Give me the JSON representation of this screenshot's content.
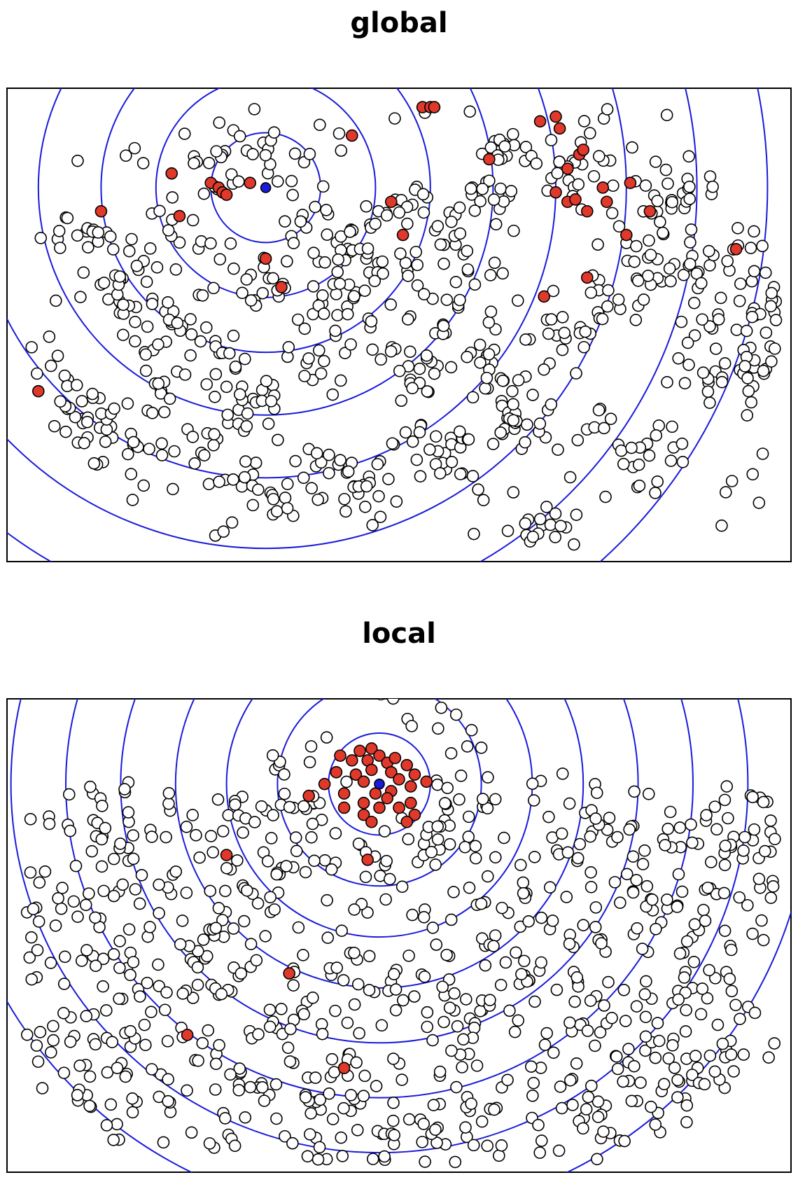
{
  "chart_data": [
    {
      "type": "scatter",
      "title": "global",
      "xlabel": "",
      "ylabel": "",
      "axes_visible": false,
      "grid": false,
      "ring_color": "#1a1adb",
      "query_color": "#1a1adb",
      "neighbor_color": "#e0392b",
      "point_color": "#ffffff",
      "query_point": {
        "x": 0.33,
        "y": 0.79
      },
      "ring_radii": [
        0.07,
        0.14,
        0.21,
        0.29,
        0.37,
        0.46,
        0.55,
        0.64
      ],
      "neighbors": [
        {
          "x": 0.53,
          "y": 0.96
        },
        {
          "x": 0.54,
          "y": 0.96
        },
        {
          "x": 0.545,
          "y": 0.96
        },
        {
          "x": 0.44,
          "y": 0.9
        },
        {
          "x": 0.21,
          "y": 0.82
        },
        {
          "x": 0.26,
          "y": 0.8
        },
        {
          "x": 0.27,
          "y": 0.79
        },
        {
          "x": 0.275,
          "y": 0.78
        },
        {
          "x": 0.28,
          "y": 0.775
        },
        {
          "x": 0.31,
          "y": 0.8
        },
        {
          "x": 0.22,
          "y": 0.73
        },
        {
          "x": 0.12,
          "y": 0.74
        },
        {
          "x": 0.33,
          "y": 0.64
        },
        {
          "x": 0.35,
          "y": 0.58
        },
        {
          "x": 0.49,
          "y": 0.76
        },
        {
          "x": 0.505,
          "y": 0.69
        },
        {
          "x": 0.615,
          "y": 0.85
        },
        {
          "x": 0.68,
          "y": 0.93
        },
        {
          "x": 0.7,
          "y": 0.94
        },
        {
          "x": 0.705,
          "y": 0.915
        },
        {
          "x": 0.73,
          "y": 0.86
        },
        {
          "x": 0.715,
          "y": 0.83
        },
        {
          "x": 0.735,
          "y": 0.87
        },
        {
          "x": 0.7,
          "y": 0.78
        },
        {
          "x": 0.715,
          "y": 0.76
        },
        {
          "x": 0.725,
          "y": 0.765
        },
        {
          "x": 0.74,
          "y": 0.74
        },
        {
          "x": 0.76,
          "y": 0.79
        },
        {
          "x": 0.765,
          "y": 0.76
        },
        {
          "x": 0.795,
          "y": 0.8
        },
        {
          "x": 0.82,
          "y": 0.74
        },
        {
          "x": 0.79,
          "y": 0.69
        },
        {
          "x": 0.685,
          "y": 0.56
        },
        {
          "x": 0.74,
          "y": 0.6
        },
        {
          "x": 0.93,
          "y": 0.66
        },
        {
          "x": 0.04,
          "y": 0.36
        }
      ]
    },
    {
      "type": "scatter",
      "title": "local",
      "xlabel": "",
      "ylabel": "",
      "axes_visible": false,
      "grid": false,
      "ring_color": "#1a1adb",
      "query_color": "#1a1adb",
      "neighbor_color": "#e0392b",
      "point_color": "#ffffff",
      "query_point": {
        "x": 0.475,
        "y": 0.82
      },
      "ring_radii": [
        0.065,
        0.13,
        0.195,
        0.26,
        0.33,
        0.4,
        0.47,
        0.55
      ],
      "neighbors": [
        {
          "x": 0.425,
          "y": 0.88
        },
        {
          "x": 0.44,
          "y": 0.87
        },
        {
          "x": 0.45,
          "y": 0.89
        },
        {
          "x": 0.46,
          "y": 0.87
        },
        {
          "x": 0.465,
          "y": 0.895
        },
        {
          "x": 0.475,
          "y": 0.88
        },
        {
          "x": 0.485,
          "y": 0.865
        },
        {
          "x": 0.495,
          "y": 0.875
        },
        {
          "x": 0.51,
          "y": 0.86
        },
        {
          "x": 0.52,
          "y": 0.84
        },
        {
          "x": 0.42,
          "y": 0.845
        },
        {
          "x": 0.405,
          "y": 0.82
        },
        {
          "x": 0.445,
          "y": 0.84
        },
        {
          "x": 0.455,
          "y": 0.825
        },
        {
          "x": 0.465,
          "y": 0.85
        },
        {
          "x": 0.49,
          "y": 0.845
        },
        {
          "x": 0.5,
          "y": 0.83
        },
        {
          "x": 0.515,
          "y": 0.815
        },
        {
          "x": 0.535,
          "y": 0.825
        },
        {
          "x": 0.49,
          "y": 0.805
        },
        {
          "x": 0.485,
          "y": 0.79
        },
        {
          "x": 0.47,
          "y": 0.8
        },
        {
          "x": 0.455,
          "y": 0.78
        },
        {
          "x": 0.43,
          "y": 0.8
        },
        {
          "x": 0.43,
          "y": 0.77
        },
        {
          "x": 0.455,
          "y": 0.755
        },
        {
          "x": 0.475,
          "y": 0.77
        },
        {
          "x": 0.5,
          "y": 0.77
        },
        {
          "x": 0.515,
          "y": 0.78
        },
        {
          "x": 0.52,
          "y": 0.755
        },
        {
          "x": 0.51,
          "y": 0.74
        },
        {
          "x": 0.465,
          "y": 0.74
        },
        {
          "x": 0.385,
          "y": 0.795
        },
        {
          "x": 0.46,
          "y": 0.66
        },
        {
          "x": 0.28,
          "y": 0.67
        },
        {
          "x": 0.36,
          "y": 0.42
        },
        {
          "x": 0.23,
          "y": 0.29
        },
        {
          "x": 0.43,
          "y": 0.22
        }
      ]
    }
  ]
}
